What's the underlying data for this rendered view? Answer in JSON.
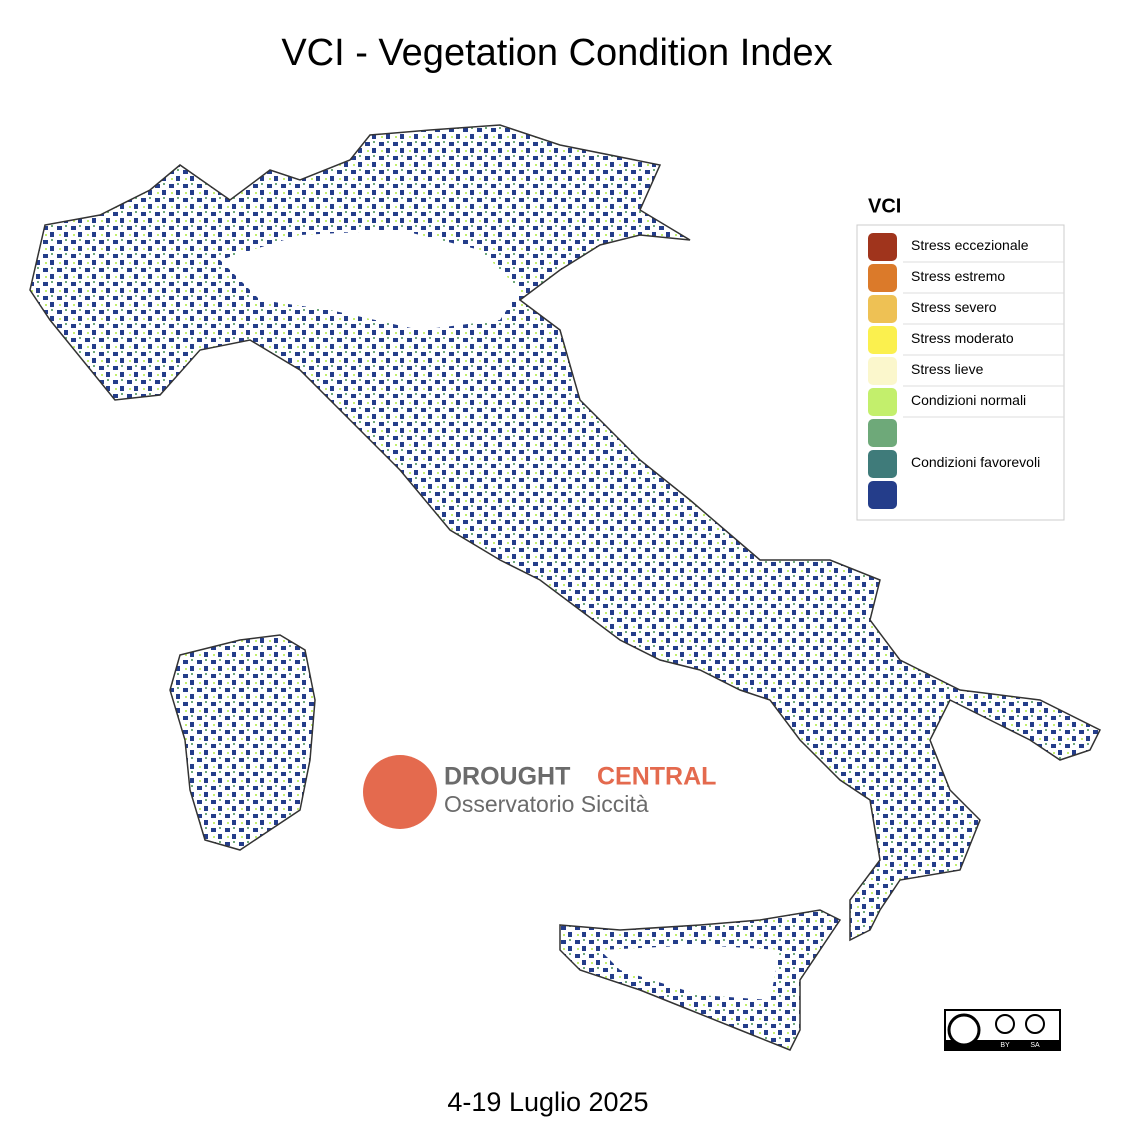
{
  "header": {
    "title": "VCI - Vegetation Condition Index"
  },
  "legend": {
    "title": "VCI",
    "items": [
      {
        "label": "Stress eccezionale",
        "colors": [
          "#a0341c"
        ]
      },
      {
        "label": "Stress estremo",
        "colors": [
          "#db7a2a"
        ]
      },
      {
        "label": "Stress severo",
        "colors": [
          "#eec154"
        ]
      },
      {
        "label": "Stress moderato",
        "colors": [
          "#fbf04e"
        ]
      },
      {
        "label": "Stress lieve",
        "colors": [
          "#fbf7cc"
        ]
      },
      {
        "label": "Condizioni normali",
        "colors": [
          "#c3ef6c"
        ]
      },
      {
        "label": "Condizioni favorevoli",
        "colors": [
          "#6ea979",
          "#3f7b7a",
          "#243d8a"
        ]
      }
    ]
  },
  "logo": {
    "word1": "DROUGHT",
    "word2": "CENTRAL",
    "subtitle": "Osservatorio Siccità"
  },
  "license": {
    "by": "BY",
    "sa": "SA"
  },
  "footer": {
    "date": "4-19 Luglio 2025"
  }
}
